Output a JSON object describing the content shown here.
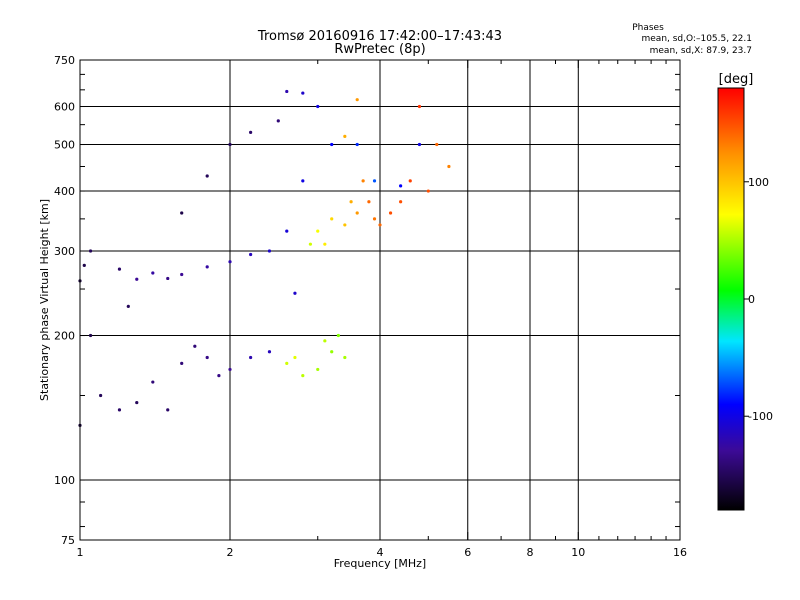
{
  "chart_data": {
    "type": "scatter",
    "title": "Tromsø 20160916 17:42:00–17:43:43",
    "subtitle": "RwPretec (8p)",
    "xlabel": "Frequency [MHz]",
    "ylabel": "Stationary phase Virtual Height [km]",
    "x_scale": "log",
    "y_scale": "log",
    "xlim": [
      1,
      16
    ],
    "ylim": [
      75,
      750
    ],
    "x_ticks": [
      1,
      2,
      4,
      6,
      8,
      10,
      16
    ],
    "x_tick_labels": [
      "1",
      "2",
      "4",
      "6",
      "8",
      "10",
      "16"
    ],
    "x_grid": [
      2,
      4,
      6,
      8,
      10
    ],
    "y_ticks": [
      75,
      100,
      200,
      300,
      400,
      500,
      600,
      750
    ],
    "y_tick_labels": [
      "75",
      "100",
      "200",
      "300",
      "400",
      "500",
      "600",
      "750"
    ],
    "y_grid": [
      100,
      200,
      300,
      400,
      500,
      600
    ],
    "grid": true,
    "phase_stats": {
      "heading": "Phases",
      "line1": "mean, sd,O:–105.5, 22.1",
      "line2": "mean, sd,X:  87.9, 23.7"
    },
    "colorbar": {
      "label": "[deg]",
      "range": [
        -180,
        180
      ],
      "ticks": [
        100,
        0,
        -100
      ],
      "tick_labels": [
        "100",
        "0",
        "-100"
      ]
    },
    "series": [
      {
        "points": [
          [
            1.0,
            260,
            -160
          ],
          [
            1.02,
            280,
            -155
          ],
          [
            1.05,
            300,
            -150
          ],
          [
            1.2,
            275,
            -145
          ],
          [
            1.3,
            262,
            -130
          ],
          [
            1.4,
            270,
            -125
          ],
          [
            1.5,
            263,
            -135
          ],
          [
            1.6,
            268,
            -130
          ],
          [
            1.8,
            278,
            -125
          ],
          [
            2.0,
            285,
            -120
          ],
          [
            2.2,
            295,
            -115
          ],
          [
            2.4,
            300,
            -110
          ],
          [
            2.6,
            330,
            -105
          ],
          [
            2.8,
            420,
            -100
          ],
          [
            2.5,
            560,
            -140
          ],
          [
            2.2,
            530,
            -145
          ],
          [
            2.0,
            500,
            -150
          ],
          [
            1.8,
            430,
            -150
          ],
          [
            1.6,
            360,
            -155
          ],
          [
            2.6,
            645,
            -120
          ],
          [
            2.8,
            640,
            -110
          ],
          [
            3.0,
            600,
            -100
          ],
          [
            3.2,
            500,
            -90
          ],
          [
            3.6,
            500,
            -80
          ],
          [
            3.9,
            420,
            -70
          ],
          [
            4.4,
            410,
            -90
          ],
          [
            4.8,
            500,
            -100
          ],
          [
            2.7,
            245,
            -110
          ],
          [
            1.0,
            130,
            -160
          ],
          [
            1.05,
            200,
            -155
          ],
          [
            1.1,
            150,
            -150
          ],
          [
            1.2,
            140,
            -145
          ],
          [
            1.3,
            145,
            -150
          ],
          [
            1.4,
            160,
            -140
          ],
          [
            1.6,
            175,
            -140
          ],
          [
            1.8,
            180,
            -135
          ],
          [
            2.0,
            170,
            -130
          ],
          [
            2.2,
            180,
            -120
          ],
          [
            2.4,
            185,
            -115
          ],
          [
            1.7,
            190,
            -140
          ],
          [
            1.9,
            165,
            -135
          ],
          [
            1.5,
            140,
            -145
          ],
          [
            1.25,
            230,
            -150
          ]
        ]
      },
      {
        "points": [
          [
            2.9,
            310,
            60
          ],
          [
            3.0,
            330,
            70
          ],
          [
            3.1,
            310,
            80
          ],
          [
            3.2,
            350,
            90
          ],
          [
            3.4,
            340,
            100
          ],
          [
            3.5,
            380,
            110
          ],
          [
            3.6,
            360,
            120
          ],
          [
            3.7,
            420,
            130
          ],
          [
            3.8,
            380,
            140
          ],
          [
            3.9,
            350,
            135
          ],
          [
            4.0,
            340,
            140
          ],
          [
            4.2,
            360,
            150
          ],
          [
            4.4,
            380,
            150
          ],
          [
            4.6,
            420,
            155
          ],
          [
            4.8,
            600,
            160
          ],
          [
            3.6,
            620,
            120
          ],
          [
            3.4,
            520,
            110
          ],
          [
            5.0,
            400,
            150
          ],
          [
            5.2,
            500,
            140
          ],
          [
            5.5,
            450,
            130
          ],
          [
            2.6,
            175,
            60
          ],
          [
            2.8,
            165,
            55
          ],
          [
            3.0,
            170,
            50
          ],
          [
            3.2,
            185,
            45
          ],
          [
            3.3,
            200,
            40
          ],
          [
            3.4,
            180,
            50
          ],
          [
            3.1,
            195,
            55
          ],
          [
            2.7,
            180,
            65
          ]
        ]
      }
    ]
  }
}
